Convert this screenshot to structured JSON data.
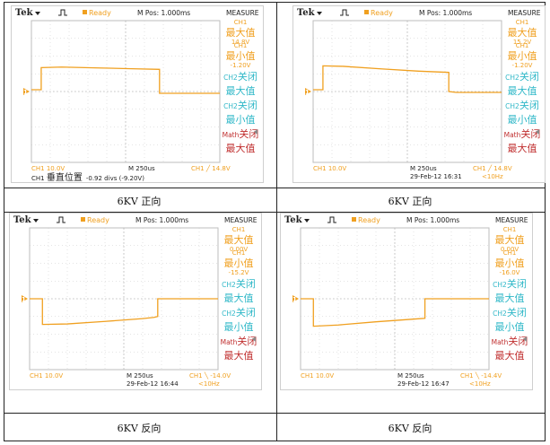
{
  "panels": [
    {
      "caption": "6KV 正向",
      "header": {
        "brand": "Tek",
        "status": "Ready",
        "mpos": "M Pos: 1.000ms",
        "measure": "MEASURE"
      },
      "measure": [
        {
          "ch": "CH1",
          "label": "最大值",
          "value": "14.8V",
          "color": "#f0a020"
        },
        {
          "ch": "CH1",
          "label": "最小值",
          "value": "-1.20V",
          "color": "#f0a020"
        },
        {
          "ch": "CH2",
          "label": "关闭",
          "sub": "最大值",
          "value": "",
          "color": "#30b8c8"
        },
        {
          "ch": "CH2",
          "label": "关闭",
          "sub": "最小值",
          "value": "",
          "color": "#30b8c8"
        },
        {
          "ch": "Math",
          "label": "关闭",
          "sub": "最大值",
          "value": "",
          "color": "#c03030"
        }
      ],
      "footer": {
        "ch_scale": "CH1 10.0V",
        "timebase": "M 250us",
        "date": "",
        "trigger": "CH1 ╱ 14.8V",
        "freq": ""
      },
      "extra_note": {
        "ch": "CH1",
        "label": "垂直位置",
        "value": "-0.92 divs (-9.20V)"
      }
    },
    {
      "caption": "6KV 正向",
      "header": {
        "brand": "Tek",
        "status": "Ready",
        "mpos": "M Pos: 1.000ms",
        "measure": "MEASURE"
      },
      "measure": [
        {
          "ch": "CH1",
          "label": "最大值",
          "value": "15.2V",
          "color": "#f0a020"
        },
        {
          "ch": "CH1",
          "label": "最小值",
          "value": "-1.20V",
          "color": "#f0a020"
        },
        {
          "ch": "CH2",
          "label": "关闭",
          "sub": "最大值",
          "value": "",
          "color": "#30b8c8"
        },
        {
          "ch": "CH2",
          "label": "关闭",
          "sub": "最小值",
          "value": "",
          "color": "#30b8c8"
        },
        {
          "ch": "Math",
          "label": "关闭",
          "sub": "最大值",
          "value": "",
          "color": "#c03030"
        }
      ],
      "footer": {
        "ch_scale": "CH1 10.0V",
        "timebase": "M 250us",
        "date": "29-Feb-12 16:31",
        "trigger": "CH1 ╱ 14.8V",
        "freq": "<10Hz"
      }
    },
    {
      "caption": "6KV 反向",
      "header": {
        "brand": "Tek",
        "status": "Ready",
        "mpos": "M Pos: 1.000ms",
        "measure": "MEASURE"
      },
      "measure": [
        {
          "ch": "CH1",
          "label": "最大值",
          "value": "0.00V",
          "color": "#f0a020"
        },
        {
          "ch": "CH1",
          "label": "最小值",
          "value": "-15.2V",
          "color": "#f0a020"
        },
        {
          "ch": "CH2",
          "label": "关闭",
          "sub": "最大值",
          "value": "",
          "color": "#30b8c8"
        },
        {
          "ch": "CH2",
          "label": "关闭",
          "sub": "最小值",
          "value": "",
          "color": "#30b8c8"
        },
        {
          "ch": "Math",
          "label": "关闭",
          "sub": "最大值",
          "value": "",
          "color": "#c03030"
        }
      ],
      "footer": {
        "ch_scale": "CH1 10.0V",
        "timebase": "M 250us",
        "date": "29-Feb-12 16:44",
        "trigger": "CH1 ╲ -14.0V",
        "freq": "<10Hz"
      }
    },
    {
      "caption": "6KV 反向",
      "header": {
        "brand": "Tek",
        "status": "Ready",
        "mpos": "M Pos: 1.000ms",
        "measure": "MEASURE"
      },
      "measure": [
        {
          "ch": "CH1",
          "label": "最大值",
          "value": "0.00V",
          "color": "#f0a020"
        },
        {
          "ch": "CH1",
          "label": "最小值",
          "value": "-16.0V",
          "color": "#f0a020"
        },
        {
          "ch": "CH2",
          "label": "关闭",
          "sub": "最大值",
          "value": "",
          "color": "#30b8c8"
        },
        {
          "ch": "CH2",
          "label": "关闭",
          "sub": "最小值",
          "value": "",
          "color": "#30b8c8"
        },
        {
          "ch": "Math",
          "label": "关闭",
          "sub": "最大值",
          "value": "",
          "color": "#c03030"
        }
      ],
      "footer": {
        "ch_scale": "CH1 10.0V",
        "timebase": "M 250us",
        "date": "29-Feb-12 16:47",
        "trigger": "CH1 ╲ -14.4V",
        "freq": "<10Hz"
      }
    }
  ],
  "colors": {
    "trace": "#f0a020",
    "ch1": "#f0a020",
    "ch2": "#30b8c8",
    "math": "#c03030",
    "grid": "#c8c8c8",
    "ground_marker": "#f0a020"
  },
  "chart_data": [
    {
      "type": "line",
      "xlim": [
        0,
        2500
      ],
      "ylim": [
        -40,
        40
      ],
      "x_unit": "us",
      "y_unit": "V",
      "series": [
        {
          "x": [
            0,
            130,
            130,
            400,
            900,
            1400,
            1700,
            1700,
            2500
          ],
          "y": [
            1,
            1,
            13.5,
            13.8,
            13.3,
            12.8,
            12.5,
            -1,
            -1
          ]
        }
      ]
    },
    {
      "type": "line",
      "xlim": [
        0,
        2500
      ],
      "ylim": [
        -40,
        40
      ],
      "x_unit": "us",
      "y_unit": "V",
      "series": [
        {
          "x": [
            0,
            130,
            130,
            400,
            900,
            1400,
            1800,
            1800,
            1900,
            2500
          ],
          "y": [
            1,
            1,
            14.5,
            14.2,
            12.8,
            11.5,
            10.8,
            0,
            -0.5,
            -0.5
          ]
        }
      ]
    },
    {
      "type": "line",
      "xlim": [
        0,
        2500
      ],
      "ylim": [
        -40,
        40
      ],
      "x_unit": "us",
      "y_unit": "V",
      "series": [
        {
          "x": [
            0,
            170,
            170,
            500,
            1000,
            1500,
            1650,
            1700,
            1700,
            2500
          ],
          "y": [
            0,
            0,
            -14.5,
            -14.2,
            -12.8,
            -11.2,
            -10.5,
            -10,
            0,
            0
          ]
        }
      ]
    },
    {
      "type": "line",
      "xlim": [
        0,
        2500
      ],
      "ylim": [
        -40,
        40
      ],
      "x_unit": "us",
      "y_unit": "V",
      "series": [
        {
          "x": [
            0,
            170,
            170,
            500,
            1000,
            1500,
            1650,
            1650,
            2500
          ],
          "y": [
            0,
            0,
            -15.5,
            -14.8,
            -13.0,
            -11.5,
            -11,
            0,
            0
          ]
        }
      ]
    }
  ]
}
